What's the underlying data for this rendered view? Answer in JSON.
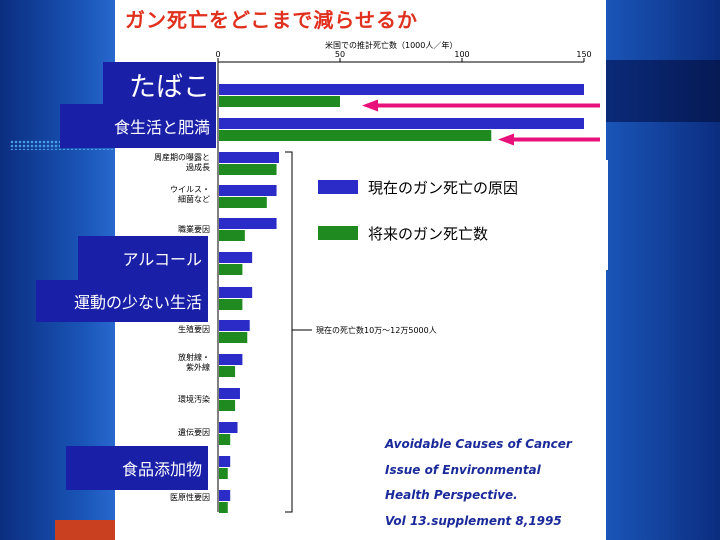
{
  "title": "ガン死亡をどこまで減らせるか",
  "chart_data": {
    "type": "bar",
    "orientation": "horizontal",
    "xlabel": "米国での推計死亡数（1000人／年）",
    "xlim": [
      0,
      150
    ],
    "xticks": [
      "0",
      "50",
      "100",
      "150"
    ],
    "categories": [
      "たばこ",
      "食生活と肥満",
      "周産期の曝露と過成長",
      "ウイルス・細菌など",
      "職業要因",
      "アルコール",
      "運動の少ない生活",
      "生殖要因",
      "放射線・紫外線",
      "環境汚染",
      "遺伝要因",
      "食品添加物",
      "医原性要因"
    ],
    "series": [
      {
        "name": "現在のガン死亡の原因",
        "color": "#2b2bc8",
        "values": [
          150,
          150,
          25,
          24,
          24,
          14,
          14,
          13,
          10,
          9,
          8,
          5,
          5
        ]
      },
      {
        "name": "将来のガン死亡数",
        "color": "#1f8a1f",
        "values": [
          50,
          112,
          24,
          20,
          11,
          10,
          10,
          12,
          7,
          7,
          5,
          4,
          4
        ]
      }
    ],
    "bracket_note": "現在の死亡数10万〜12万5000人",
    "colors": {
      "arrow": "#e8107a"
    }
  },
  "side_labels": {
    "tobacco": "たばこ",
    "diet": "食生活と肥満",
    "alcohol": "アルコール",
    "exercise": "運動の少ない生活",
    "additives": "食品添加物"
  },
  "small_labels": {
    "perinatal_1": "周産期の曝露と",
    "perinatal_2": "過成長",
    "virus_1": "ウイルス・",
    "virus_2": "細菌など",
    "occupation": "職業要因",
    "reproductive": "生殖要因",
    "radiation_1": "放射線・",
    "radiation_2": "紫外線",
    "environment": "環境汚染",
    "genetic": "遺伝要因",
    "iatrogenic": "医原性要因"
  },
  "legend": {
    "current": "現在のガン死亡の原因",
    "future": "将来のガン死亡数"
  },
  "citation": [
    "Avoidable Causes of Cancer",
    "Issue of Environmental",
    "Health Perspective.",
    "Vol 13.supplement 8,1995"
  ]
}
